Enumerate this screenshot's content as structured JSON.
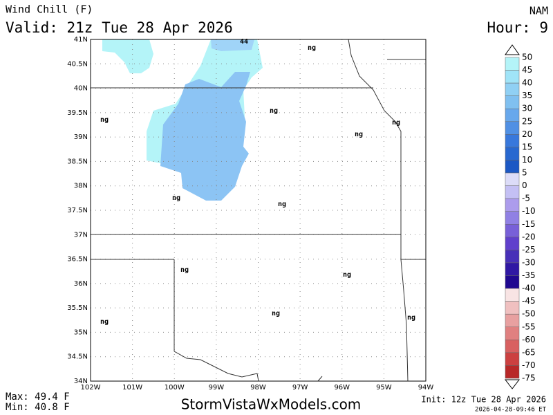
{
  "header": {
    "title": "Wind Chill (F)",
    "valid": "Valid: 21z Tue 28 Apr 2026",
    "model": "NAM",
    "hour": "Hour: 9"
  },
  "map": {
    "lat_labels": [
      "41N",
      "40.5N",
      "40N",
      "39.5N",
      "39N",
      "38.5N",
      "38N",
      "37.5N",
      "37N",
      "36.5N",
      "36N",
      "35.5N",
      "35N",
      "34.5N",
      "34N"
    ],
    "lon_labels": [
      "102W",
      "101W",
      "100W",
      "99W",
      "98W",
      "97W",
      "96W",
      "95W",
      "94W"
    ],
    "stations": [
      "44",
      "ng",
      "ng",
      "ng",
      "ng",
      "ng",
      "ng",
      "ng",
      "ng",
      "ng",
      "ng",
      "ng",
      "ng"
    ]
  },
  "colorbar": {
    "labels": [
      50,
      45,
      40,
      35,
      30,
      25,
      20,
      15,
      10,
      5,
      0,
      -5,
      -10,
      -15,
      -20,
      -25,
      -30,
      -35,
      -40,
      -45,
      -50,
      -55,
      -60,
      -65,
      -70,
      -75
    ],
    "colors": [
      "#b4f4f8",
      "#a0e4f8",
      "#90d0f4",
      "#80c0f0",
      "#68a8ec",
      "#5090e4",
      "#3878dc",
      "#2868d0",
      "#1c58c4",
      "#dcdcf8",
      "#c4c0f4",
      "#ac9cec",
      "#9080e4",
      "#7860d8",
      "#6040cc",
      "#4830b8",
      "#3018a4",
      "#200890",
      "#f8e4e4",
      "#f0c0c0",
      "#e8a0a0",
      "#e08080",
      "#d86060",
      "#cc4040",
      "#b82828"
    ]
  },
  "footer": {
    "max": "Max: 49.4 F",
    "min": "Min: 40.8 F",
    "site": "StormVistaWxModels.com",
    "init": "Init: 12z Tue 28 Apr 2026",
    "stamp": "2026-04-28-09:46 ET"
  }
}
